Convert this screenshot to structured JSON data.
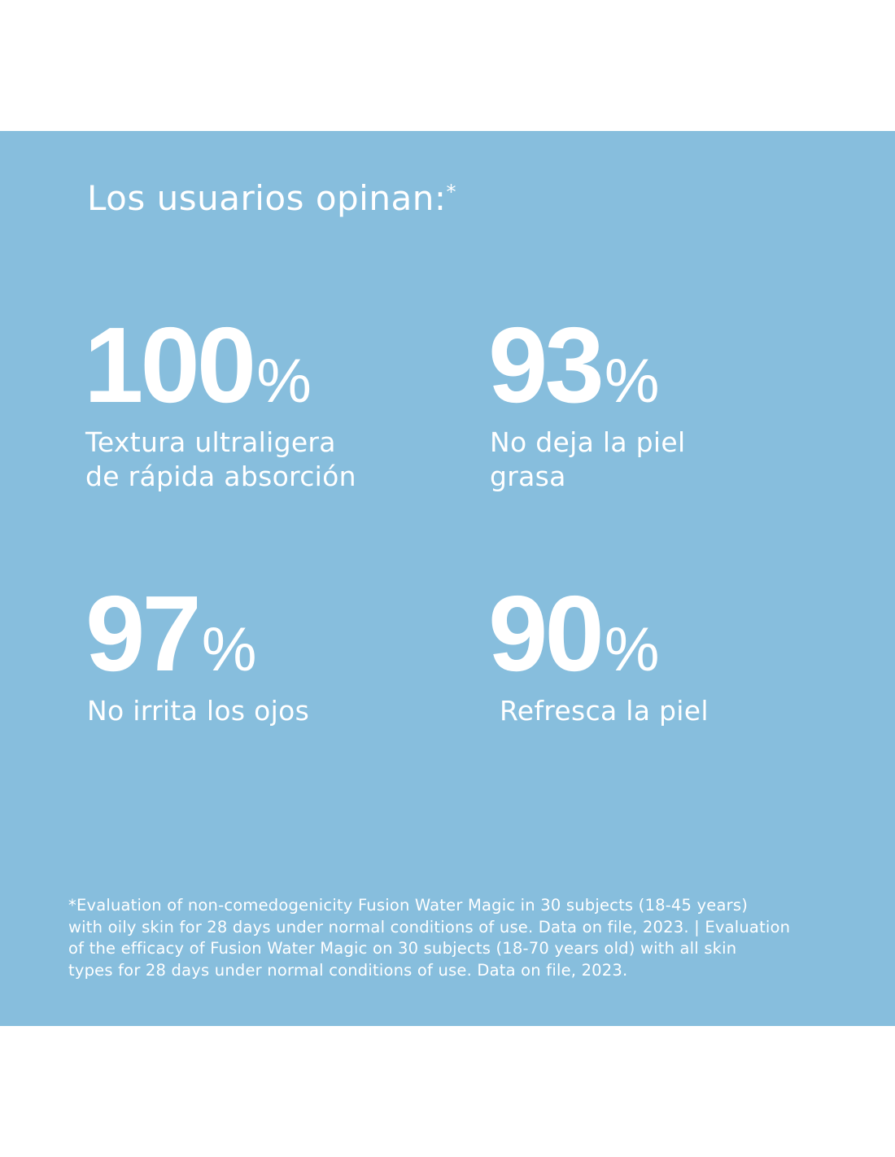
{
  "title": "Los usuarios opinan:",
  "title_mark": "*",
  "stats": [
    {
      "value": 100,
      "unit": "%",
      "label": [
        "Textura ultraligera",
        "de rápida absorción"
      ]
    },
    {
      "value": 93,
      "unit": "%",
      "label": [
        "No deja la piel",
        "grasa"
      ]
    },
    {
      "value": 97,
      "unit": "%",
      "label": [
        "No irrita los ojos"
      ]
    },
    {
      "value": 90,
      "unit": "%",
      "label": [
        "Refresca la piel"
      ]
    }
  ],
  "footnote": [
    "*Evaluation of non-comedogenicity Fusion Water Magic in 30 subjects (18-45 years)",
    "with oily skin for 28 days under normal conditions of use. Data on file, 2023. | Evaluation",
    "of the efficacy of Fusion Water Magic on 30 subjects (18-70 years old) with all skin",
    "types for 28 days under normal conditions of use. Data on file, 2023."
  ]
}
